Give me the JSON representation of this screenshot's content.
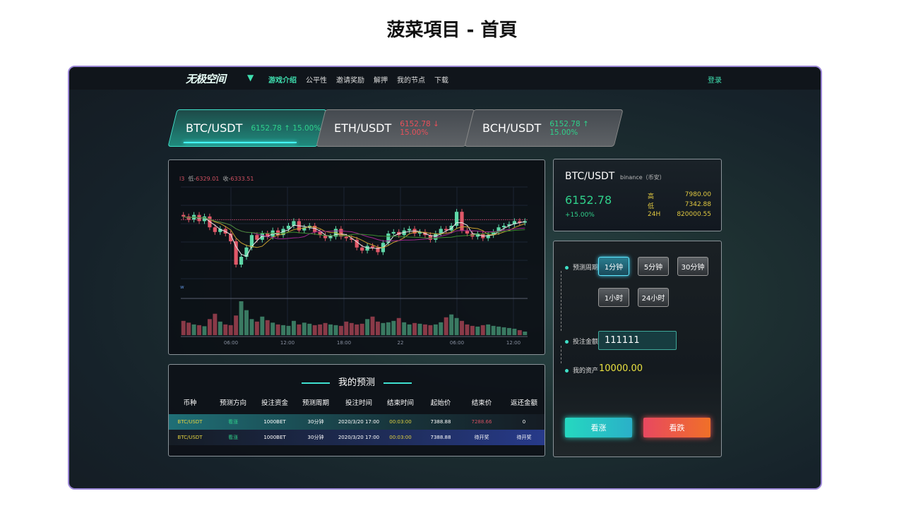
{
  "page_title": "菠菜項目 - 首頁",
  "nav": {
    "logo": "无极空间",
    "items": [
      "游戏介绍",
      "公平性",
      "邀请奖励",
      "解押",
      "我的节点",
      "下载"
    ],
    "active": 0,
    "login": "登录"
  },
  "tabs": [
    {
      "pair": "BTC/USDT",
      "price": "6152.78",
      "arrow": "↑",
      "change": "15.00%",
      "direction": "up"
    },
    {
      "pair": "ETH/USDT",
      "price": "6152.78",
      "arrow": "↓",
      "change": "15.00%",
      "direction": "down"
    },
    {
      "pair": "BCH/USDT",
      "price": "6152.78",
      "arrow": "↑",
      "change": "15.00%",
      "direction": "up"
    }
  ],
  "chart_data": {
    "type": "candlestick",
    "readout": {
      "prefix": "l3",
      "low_label": "低-",
      "low": "6329.01",
      "close_label": "收-",
      "close": "6333.51"
    },
    "volume_label": "w",
    "x_ticks": [
      "06:00",
      "12:00",
      "18:00",
      "22",
      "06:00",
      "12:00"
    ],
    "ylim": [
      6280,
      6400
    ],
    "closes": [
      6362,
      6358,
      6364,
      6356,
      6362,
      6348,
      6342,
      6346,
      6340,
      6330,
      6300,
      6310,
      6322,
      6338,
      6332,
      6340,
      6336,
      6344,
      6338,
      6346,
      6350,
      6356,
      6344,
      6348,
      6350,
      6342,
      6338,
      6334,
      6336,
      6346,
      6336,
      6334,
      6332,
      6322,
      6318,
      6324,
      6322,
      6316,
      6328,
      6340,
      6342,
      6338,
      6344,
      6346,
      6340,
      6342,
      6338,
      6332,
      6340,
      6346,
      6344,
      6350,
      6368,
      6344,
      6340,
      6336,
      6340,
      6334,
      6338,
      6342,
      6348,
      6350,
      6352,
      6356,
      6354,
      6356
    ],
    "volumes": [
      40,
      35,
      30,
      28,
      25,
      45,
      60,
      38,
      30,
      28,
      55,
      95,
      70,
      45,
      38,
      52,
      42,
      35,
      30,
      28,
      26,
      40,
      30,
      35,
      32,
      28,
      30,
      34,
      30,
      28,
      26,
      38,
      34,
      30,
      32,
      45,
      52,
      38,
      34,
      36,
      40,
      48,
      36,
      30,
      34,
      32,
      30,
      28,
      30,
      36,
      50,
      58,
      48,
      40,
      30,
      26,
      24,
      28,
      30,
      26,
      24,
      22,
      20,
      18,
      14,
      10
    ]
  },
  "table": {
    "title": "我的预测",
    "headers": [
      "币种",
      "预测方向",
      "投注资金",
      "预测周期",
      "投注时间",
      "结束时间",
      "起始价",
      "结束价",
      "返还金额"
    ],
    "rows": [
      [
        "BTC/USDT",
        "看涨",
        "1000BET",
        "30分钟",
        "2020/3/20 17:00",
        "00:03:00",
        "7388.88",
        "7288.66",
        "0"
      ],
      [
        "BTC/USDT",
        "看涨",
        "1000BET",
        "30分钟",
        "2020/3/20 17:00",
        "00:03:00",
        "7388.88",
        "待开奖",
        "待开奖"
      ]
    ]
  },
  "ticker": {
    "pair": "BTC/USDT",
    "exchange": "binance（币安）",
    "price": "6152.78",
    "change": "+15.00%",
    "stats": [
      {
        "label": "高",
        "value": "7980.00"
      },
      {
        "label": "低",
        "value": "7342.88"
      },
      {
        "label": "24H",
        "value": "820000.55"
      }
    ]
  },
  "form": {
    "period_label": "预测周期",
    "periods": [
      "1分钟",
      "5分钟",
      "30分钟",
      "1小时",
      "24小时"
    ],
    "selected_period": 0,
    "amount_label": "投注金额",
    "amount": "111111",
    "asset_label": "我的资产",
    "asset": "10000.00",
    "rise": "看涨",
    "fall": "看跌"
  },
  "colors": {
    "up": "#2fd08a",
    "down": "#e8505a",
    "accent": "#3fe0c8"
  }
}
